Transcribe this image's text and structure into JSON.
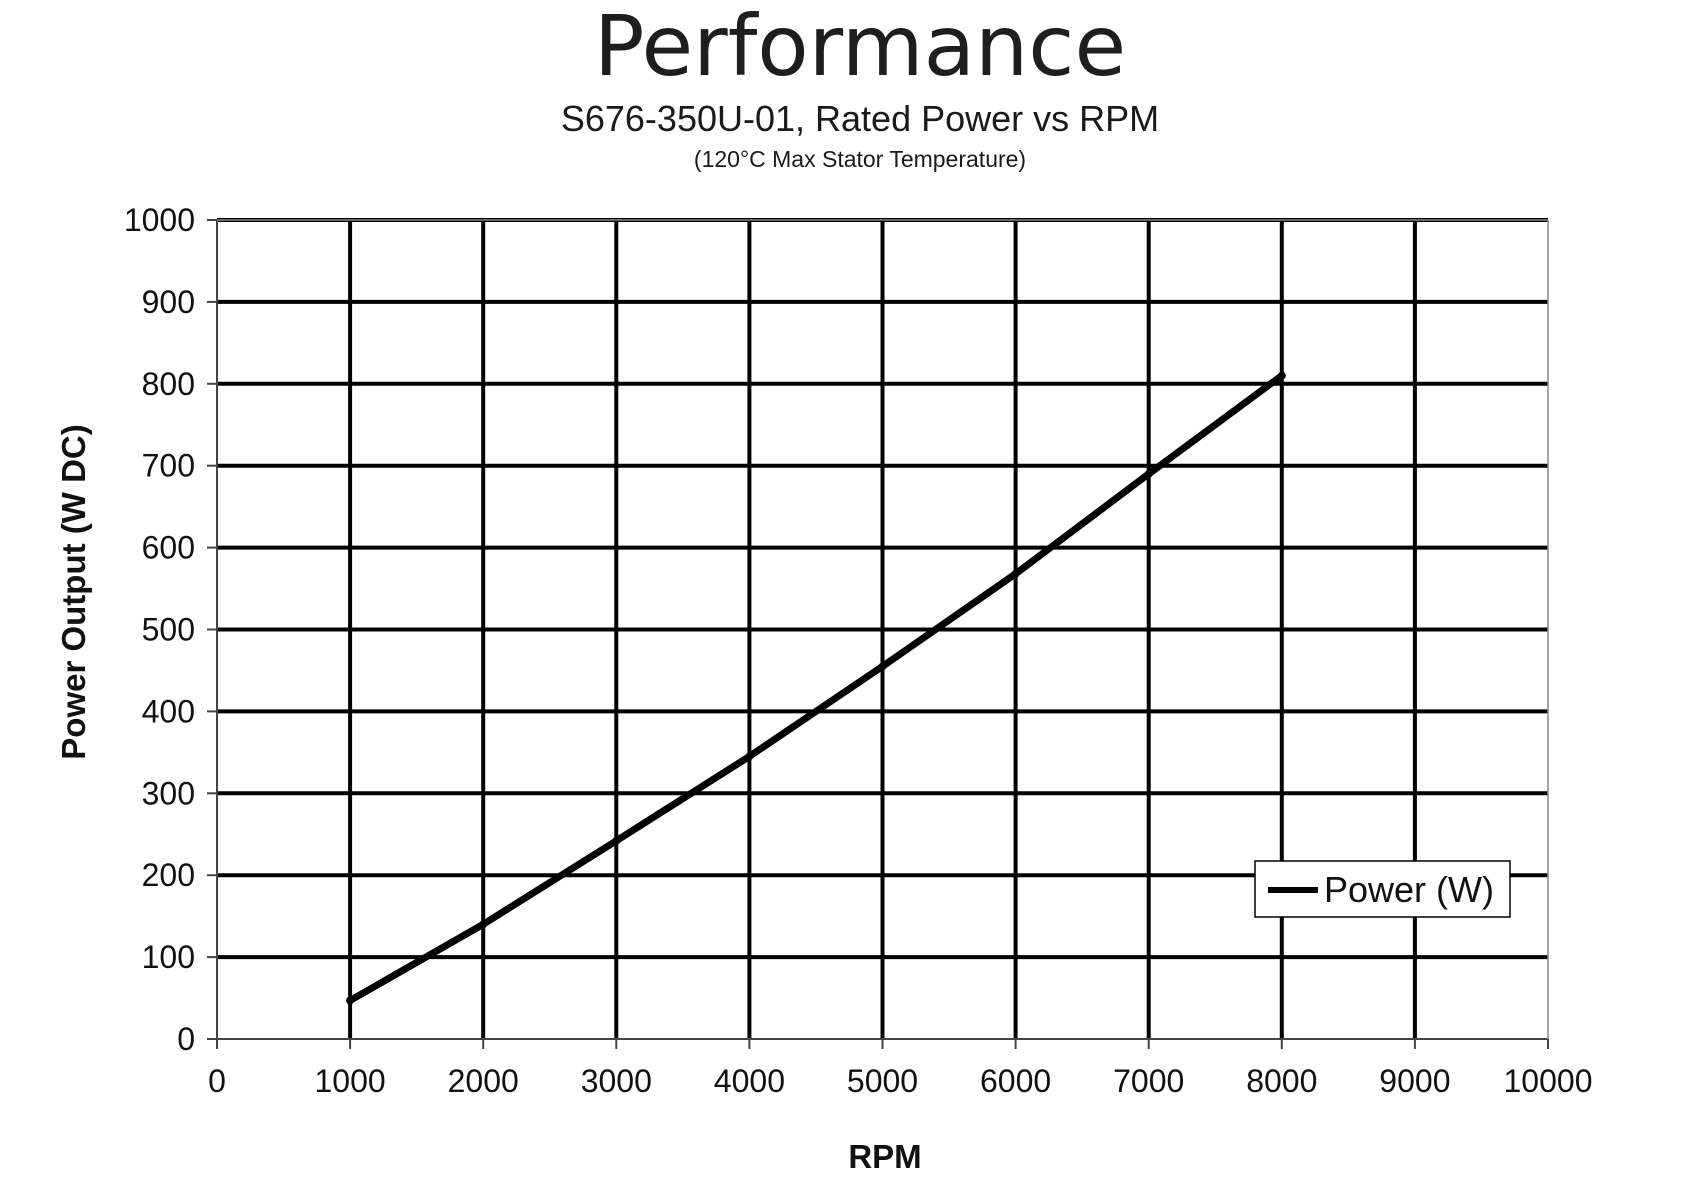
{
  "chart_data": {
    "type": "line",
    "title": "Performance",
    "subtitle": "S676-350U-01, Rated Power vs RPM",
    "note": "(120°C Max Stator Temperature)",
    "xlabel": "RPM",
    "ylabel": "Power Output (W DC)",
    "xlim": [
      0,
      10000
    ],
    "ylim": [
      0,
      1000
    ],
    "xticks": [
      0,
      1000,
      2000,
      3000,
      4000,
      5000,
      6000,
      7000,
      8000,
      9000,
      10000
    ],
    "yticks": [
      0,
      100,
      200,
      300,
      400,
      500,
      600,
      700,
      800,
      900,
      1000
    ],
    "xtick_labels": [
      "0",
      "1000",
      "2000",
      "3000",
      "4000",
      "5000",
      "6000",
      "7000",
      "8000",
      "9000",
      "10000"
    ],
    "ytick_labels": [
      "0",
      "100",
      "200",
      "300",
      "400",
      "500",
      "600",
      "700",
      "800",
      "900",
      "1000"
    ],
    "grid": true,
    "legend_position": "bottom-right",
    "series": [
      {
        "name": "Power (W)",
        "color": "#000000",
        "x": [
          1000,
          2000,
          3000,
          4000,
          5000,
          6000,
          7000,
          8000
        ],
        "y": [
          47,
          140,
          242,
          345,
          455,
          568,
          690,
          810
        ]
      }
    ]
  }
}
